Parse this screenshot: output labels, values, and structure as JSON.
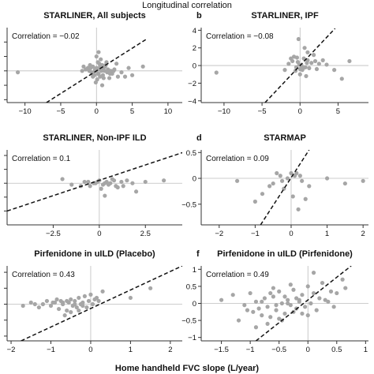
{
  "figure": {
    "title": "Longitudinal correlation",
    "xlabel": "Home handheld FVC slope (L/year)"
  },
  "chart_data": [
    {
      "type": "scatter",
      "letter": "",
      "title": "STARLINER, All subjects",
      "annotation": "Correlation = −0.02",
      "xlim": [
        -12.5,
        12
      ],
      "ylim": [
        -2.2,
        3.0
      ],
      "xticks": [
        -10,
        -5,
        0,
        5,
        10
      ],
      "xtick_labels": [
        "−10",
        "−5",
        "0",
        "5",
        "10"
      ],
      "yticks": [
        -2,
        -1,
        0,
        1,
        2
      ],
      "ytick_labels": [
        "",
        "",
        "",
        "",
        ""
      ],
      "grid": false,
      "fit_line": [
        [
          -7,
          -2.2
        ],
        [
          7,
          2.2
        ]
      ],
      "x": [
        -11,
        -0.5,
        0,
        0.3,
        0.8,
        -0.2,
        0.5,
        1.0,
        -1.0,
        1.5,
        0.2,
        -0.3,
        0.7,
        1.2,
        -0.6,
        0.4,
        2.0,
        -1.5,
        1.8,
        0.1,
        -0.8,
        0.9,
        2.5,
        -2.0,
        1.3,
        0.6,
        -0.4,
        3.0,
        0.0,
        1.1,
        -0.1,
        0.5,
        6.5,
        4.0,
        2.2,
        -1.2,
        0.3,
        1.6,
        -0.7,
        0.8,
        5.0,
        2.8,
        -0.9,
        0.2,
        1.4,
        4.5,
        3.5,
        0.0,
        -0.5,
        0.7,
        -1.8,
        1.9,
        0.4,
        2.4,
        1.0
      ],
      "y": [
        -0.1,
        0.3,
        0.0,
        -0.2,
        0.4,
        0.1,
        -0.4,
        0.2,
        0.0,
        -0.1,
        0.6,
        -0.3,
        0.1,
        0.3,
        -0.2,
        0.5,
        0.0,
        0.1,
        -0.5,
        -0.6,
        0.2,
        -0.3,
        0.1,
        0.0,
        0.4,
        0.8,
        -0.1,
        -0.4,
        1.0,
        0.0,
        -0.8,
        0.3,
        0.3,
        -0.4,
        -0.2,
        0.2,
        1.3,
        0.1,
        -0.1,
        -1.0,
        -0.3,
        0.5,
        0.4,
        -0.2,
        0.6,
        0.2,
        -0.1,
        0.2,
        -0.4,
        0.0,
        0.3,
        -0.2,
        0.1,
        0.0,
        -0.5
      ]
    },
    {
      "type": "scatter",
      "letter": "b",
      "title": "STARLINER, IPF",
      "annotation": "Correlation = −0.08",
      "xlim": [
        -13,
        9
      ],
      "ylim": [
        -4.2,
        4.3
      ],
      "xticks": [
        -10,
        -5,
        0,
        5
      ],
      "xtick_labels": [
        "−10",
        "−5",
        "0",
        "5"
      ],
      "yticks": [
        -4,
        -2,
        0,
        2,
        4
      ],
      "ytick_labels": [
        "−4",
        "−2",
        "0",
        "2",
        "4"
      ],
      "grid": false,
      "fit_line": [
        [
          -4.6,
          -4.2
        ],
        [
          4.6,
          4.2
        ]
      ],
      "x": [
        -11,
        -1.0,
        0.0,
        0.5,
        -0.5,
        1.0,
        -0.2,
        0.3,
        1.5,
        -1.5,
        0.8,
        2.0,
        -0.8,
        0.2,
        1.2,
        3.0,
        -2.0,
        0.6,
        -0.3,
        6.5,
        4.5,
        2.5,
        0.0,
        1.8,
        -1.2,
        0.4,
        -0.6,
        3.5,
        1.0,
        -0.1,
        0.7,
        2.2,
        -0.4,
        0.9,
        5.5
      ],
      "y": [
        -0.8,
        0.5,
        -0.4,
        0.8,
        -0.2,
        1.5,
        3.0,
        -0.5,
        0.3,
        0.2,
        -1.2,
        0.5,
        1.0,
        0.0,
        -0.3,
        0.6,
        -0.5,
        2.0,
        0.4,
        0.5,
        -0.5,
        0.2,
        -1.0,
        1.2,
        0.8,
        -0.3,
        -0.6,
        0.1,
        0.6,
        0.1,
        -0.2,
        -0.4,
        0.9,
        0.3,
        -1.5
      ]
    },
    {
      "type": "scatter",
      "letter": "",
      "title": "STARLINER, Non-IPF ILD",
      "annotation": "Correlation = 0.1",
      "xlim": [
        -5.0,
        4.5
      ],
      "ylim": [
        -1.5,
        1.2
      ],
      "xticks": [
        -2.5,
        0,
        2.5
      ],
      "xtick_labels": [
        "−2.5",
        "0",
        "2.5"
      ],
      "yticks": [
        -1,
        -0.5,
        0,
        0.5,
        1
      ],
      "ytick_labels": [
        "",
        "",
        "",
        "",
        ""
      ],
      "grid": false,
      "fit_line": [
        [
          -5.0,
          -1.0
        ],
        [
          4.5,
          1.1
        ]
      ],
      "x": [
        -2.0,
        -1.5,
        -0.8,
        -0.5,
        -0.2,
        0.0,
        0.2,
        0.4,
        0.6,
        0.8,
        1.0,
        1.2,
        1.5,
        -1.0,
        -0.3,
        0.3,
        0.5,
        0.1,
        1.8,
        2.5,
        3.5,
        0.9,
        -0.6,
        0.7,
        2.0,
        0.3,
        -0.1,
        1.3
      ],
      "y": [
        0.15,
        -0.05,
        0.05,
        -0.1,
        0.0,
        0.1,
        -0.05,
        0.05,
        0.0,
        0.1,
        -0.15,
        0.05,
        0.1,
        -0.1,
        0.0,
        -0.45,
        -0.05,
        -0.2,
        0.0,
        0.05,
        0.1,
        -0.1,
        0.05,
        0.15,
        -0.3,
        0.0,
        0.05,
        -0.1
      ]
    },
    {
      "type": "scatter",
      "letter": "d",
      "title": "STARMAP",
      "annotation": "Correlation = 0.09",
      "xlim": [
        -2.5,
        2.15
      ],
      "ylim": [
        -0.9,
        0.55
      ],
      "xticks": [
        -2,
        -1,
        0,
        1,
        2
      ],
      "xtick_labels": [
        "−2",
        "−1",
        "0",
        "1",
        "2"
      ],
      "yticks": [
        -0.5,
        0,
        0.5
      ],
      "ytick_labels": [
        "−0.5",
        "0",
        "0.5"
      ],
      "grid": false,
      "fit_line": [
        [
          -0.85,
          -0.9
        ],
        [
          0.5,
          0.55
        ]
      ],
      "x": [
        -1.5,
        -1.0,
        -0.8,
        -0.5,
        -0.3,
        -0.2,
        0.0,
        0.1,
        0.2,
        -0.1,
        0.3,
        0.5,
        1.0,
        1.5,
        2.0,
        -0.6,
        0.15,
        -0.4,
        0.05,
        0.4,
        -0.25,
        0.25
      ],
      "y": [
        -0.05,
        -0.45,
        -0.3,
        -0.1,
        0.05,
        -0.2,
        0.1,
        0.05,
        -0.6,
        0.0,
        -0.05,
        -0.15,
        0.0,
        -0.1,
        -0.05,
        -0.15,
        0.1,
        0.1,
        -0.35,
        -0.4,
        -0.05,
        0.05
      ]
    },
    {
      "type": "scatter",
      "letter": "",
      "title": "Pirfenidone in uILD (Placebo)",
      "annotation": "Correlation = 0.43",
      "xlim": [
        -2.1,
        2.3
      ],
      "ylim": [
        -1.15,
        1.2
      ],
      "xticks": [
        -2,
        -1,
        0,
        1,
        2
      ],
      "xtick_labels": [
        "−2",
        "−1",
        "0",
        "1",
        "2"
      ],
      "yticks": [
        -1,
        -0.5,
        0,
        0.5,
        1
      ],
      "ytick_labels": [
        "",
        "",
        "",
        "",
        ""
      ],
      "grid": false,
      "fit_line": [
        [
          -1.75,
          -1.15
        ],
        [
          2.3,
          1.2
        ]
      ],
      "x": [
        -1.7,
        -1.5,
        -1.3,
        -1.2,
        -1.1,
        -1.0,
        -0.9,
        -0.8,
        -0.75,
        -0.7,
        -0.6,
        -0.55,
        -0.5,
        -0.45,
        -0.4,
        -0.35,
        -0.3,
        -0.25,
        -0.2,
        -0.15,
        -0.1,
        -0.05,
        0.0,
        0.1,
        0.2,
        0.3,
        1.0,
        1.5,
        -0.65,
        -0.85,
        -0.3,
        -0.2,
        0.05,
        -0.5,
        -1.4,
        -0.95,
        -0.7,
        -0.4,
        0.15,
        -0.6
      ],
      "y": [
        -0.05,
        0.05,
        -0.1,
        0.0,
        0.1,
        -0.05,
        0.05,
        -0.15,
        0.1,
        0.0,
        -0.2,
        0.05,
        0.15,
        -0.05,
        0.1,
        -0.1,
        0.2,
        0.0,
        0.05,
        0.25,
        -0.1,
        0.1,
        0.3,
        0.15,
        0.1,
        0.4,
        0.2,
        0.5,
        -0.35,
        0.15,
        -0.2,
        -0.05,
        0.0,
        -0.25,
        0.0,
        0.05,
        0.05,
        0.0,
        0.2,
        0.1
      ]
    },
    {
      "type": "scatter",
      "letter": "f",
      "title": "Pirfenidone in uILD (Pirfenidone)",
      "annotation": "Correlation = 0.49",
      "xlim": [
        -1.85,
        1.05
      ],
      "ylim": [
        -1.1,
        1.1
      ],
      "xticks": [
        -1.5,
        -1,
        -0.5,
        0,
        0.5,
        1
      ],
      "xtick_labels": [
        "−1.5",
        "−1",
        "−0.5",
        "0",
        "0.5",
        "1"
      ],
      "yticks": [
        -1,
        -0.5,
        0,
        0.5,
        1
      ],
      "ytick_labels": [
        "−1",
        "−0.5",
        "0",
        "0.5",
        "1"
      ],
      "grid": false,
      "fit_line": [
        [
          -0.9,
          -1.1
        ],
        [
          0.75,
          1.1
        ]
      ],
      "x": [
        -1.5,
        -1.3,
        -1.2,
        -1.1,
        -1.0,
        -0.95,
        -0.9,
        -0.85,
        -0.8,
        -0.75,
        -0.7,
        -0.65,
        -0.6,
        -0.55,
        -0.5,
        -0.45,
        -0.4,
        -0.35,
        -0.3,
        -0.25,
        -0.2,
        -0.15,
        -0.1,
        -0.05,
        0.0,
        0.05,
        0.1,
        0.15,
        0.2,
        0.25,
        0.3,
        0.4,
        0.5,
        0.6,
        0.65,
        -0.9,
        -0.7,
        -0.5,
        -0.3,
        -0.1,
        0.1,
        -0.6,
        -0.4,
        -0.2,
        0.0,
        -0.8,
        -1.05,
        -0.55,
        -0.35,
        -0.15,
        0.35,
        0.45,
        -0.25,
        -0.65,
        -0.45
      ],
      "y": [
        0.1,
        0.25,
        -0.5,
        -0.05,
        0.3,
        -0.25,
        0.05,
        -0.15,
        -0.35,
        0.15,
        -0.1,
        -0.4,
        0.2,
        -0.2,
        0.35,
        0.0,
        -0.3,
        0.1,
        -0.05,
        0.4,
        -0.15,
        0.05,
        0.25,
        -0.1,
        0.5,
        0.0,
        0.3,
        -0.2,
        0.15,
        0.6,
        0.1,
        0.35,
        0.3,
        0.7,
        0.45,
        -0.7,
        -0.6,
        -0.45,
        0.55,
        -0.3,
        0.9,
        0.45,
        0.2,
        0.15,
        -0.35,
        0.05,
        -0.2,
        -0.05,
        0.0,
        0.1,
        0.05,
        -0.1,
        -0.25,
        0.3,
        -0.5
      ]
    }
  ]
}
